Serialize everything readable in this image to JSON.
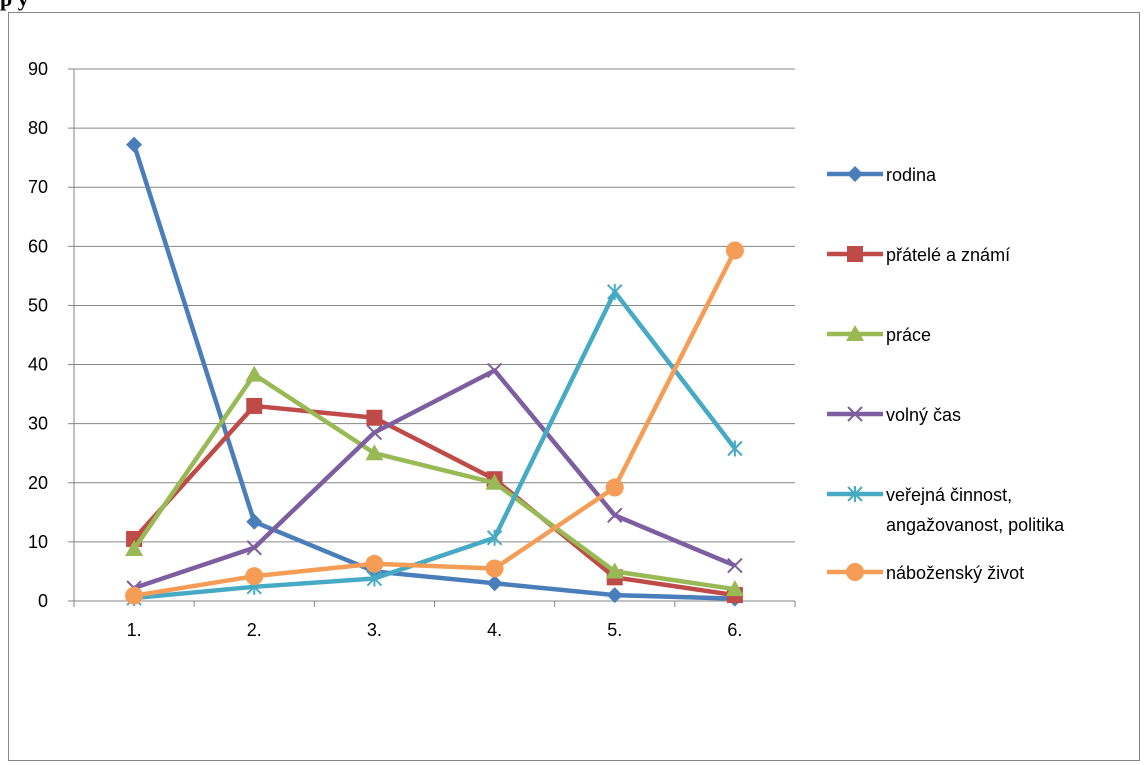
{
  "page_title": "p     y",
  "chart_data": {
    "type": "line",
    "categories": [
      "1.",
      "2.",
      "3.",
      "4.",
      "5.",
      "6."
    ],
    "ylim": [
      0,
      90
    ],
    "y_ticks": [
      0,
      10,
      20,
      30,
      40,
      50,
      60,
      70,
      80,
      90
    ],
    "grid": true,
    "legend_position": "right",
    "series": [
      {
        "name": "rodina",
        "label_lines": [
          "rodina"
        ],
        "color": "#4a7ebb",
        "marker": "diamond",
        "values": [
          77.2,
          13.4,
          5,
          3,
          1,
          0.4
        ]
      },
      {
        "name": "přátelé a známí",
        "label_lines": [
          "přátelé a známí"
        ],
        "color": "#be4b48",
        "marker": "square",
        "values": [
          10.5,
          33,
          31,
          20.6,
          4,
          1
        ]
      },
      {
        "name": "práce",
        "label_lines": [
          "práce"
        ],
        "color": "#98b954",
        "marker": "triangle",
        "values": [
          8.8,
          38.3,
          25,
          20,
          5,
          2
        ]
      },
      {
        "name": "volný čas",
        "label_lines": [
          "volný čas"
        ],
        "color": "#7d5fa0",
        "marker": "x",
        "values": [
          2.2,
          9,
          28.5,
          39,
          14.5,
          6
        ]
      },
      {
        "name": "veřejná činnost, angažovanost, politika",
        "label_lines": [
          "veřejná činnost,",
          "angažovanost, politika"
        ],
        "color": "#46aac5",
        "marker": "star",
        "values": [
          0.5,
          2.4,
          3.8,
          10.7,
          52.3,
          25.8
        ]
      },
      {
        "name": "náboženský život",
        "label_lines": [
          "náboženský život"
        ],
        "color": "#f59d56",
        "marker": "circle",
        "values": [
          0.9,
          4.2,
          6.3,
          5.5,
          19.2,
          59.3
        ]
      }
    ]
  }
}
